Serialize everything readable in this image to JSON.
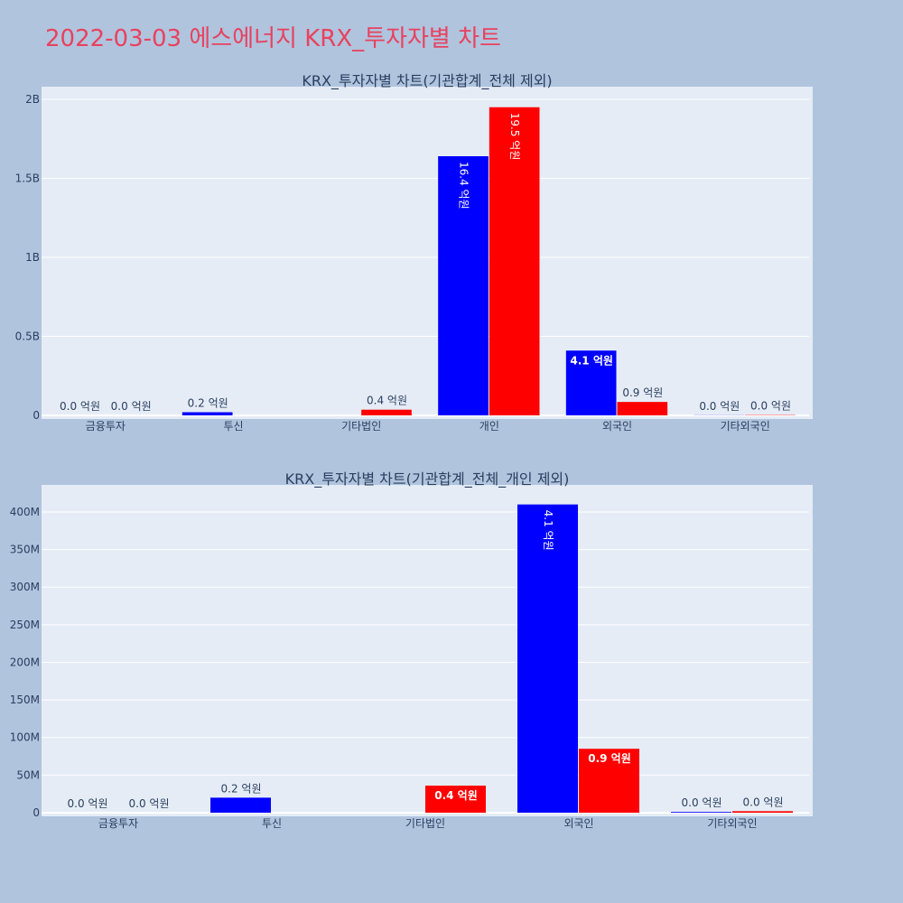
{
  "page": {
    "title": "2022-03-03 에스에너지 KRX_투자자별 차트",
    "title_color": "#e8425e",
    "background": "#b0c4de",
    "plot_background": "#e5ecf6"
  },
  "chart_data": [
    {
      "type": "bar",
      "title": "KRX_투자자별 차트(기관합계_전체 제외)",
      "categories": [
        "금융투자",
        "투신",
        "기타법인",
        "개인",
        "외국인",
        "기타외국인"
      ],
      "series": [
        {
          "color": "#0000ff",
          "values": [
            0,
            20000000,
            0,
            1640000000,
            410000000,
            1000000
          ]
        },
        {
          "color": "#ff0000",
          "values": [
            0,
            0,
            36000000,
            1950000000,
            85000000,
            2000000
          ]
        }
      ],
      "bar_labels": [
        [
          "0.0 억원",
          "0.2 억원",
          "",
          "16.4 억원",
          "4.1 억원",
          "0.0 억원"
        ],
        [
          "0.0 억원",
          "",
          "0.4 억원",
          "19.5 억원",
          "0.9 억원",
          "0.0 억원"
        ]
      ],
      "ylim": [
        0,
        2080000000
      ],
      "yticks": [
        0,
        500000000,
        1000000000,
        1500000000,
        2000000000
      ],
      "ytick_labels": [
        "0",
        "0.5B",
        "1B",
        "1.5B",
        "2B"
      ],
      "xlabel": "",
      "ylabel": "",
      "grid": true
    },
    {
      "type": "bar",
      "title": "KRX_투자자별 차트(기관합계_전체_개인 제외)",
      "categories": [
        "금융투자",
        "투신",
        "기타법인",
        "외국인",
        "기타외국인"
      ],
      "series": [
        {
          "color": "#0000ff",
          "values": [
            0,
            20000000,
            0,
            410000000,
            1000000
          ]
        },
        {
          "color": "#ff0000",
          "values": [
            0,
            0,
            36000000,
            85000000,
            2000000
          ]
        }
      ],
      "bar_labels": [
        [
          "0.0 억원",
          "0.2 억원",
          "",
          "4.1 억원",
          "0.0 억원"
        ],
        [
          "0.0 억원",
          "",
          "0.4 억원",
          "0.9 억원",
          "0.0 억원"
        ]
      ],
      "ylim": [
        0,
        436000000
      ],
      "yticks": [
        0,
        50000000,
        100000000,
        150000000,
        200000000,
        250000000,
        300000000,
        350000000,
        400000000
      ],
      "ytick_labels": [
        "0",
        "50M",
        "100M",
        "150M",
        "200M",
        "250M",
        "300M",
        "350M",
        "400M"
      ],
      "xlabel": "",
      "ylabel": "",
      "grid": true
    }
  ]
}
